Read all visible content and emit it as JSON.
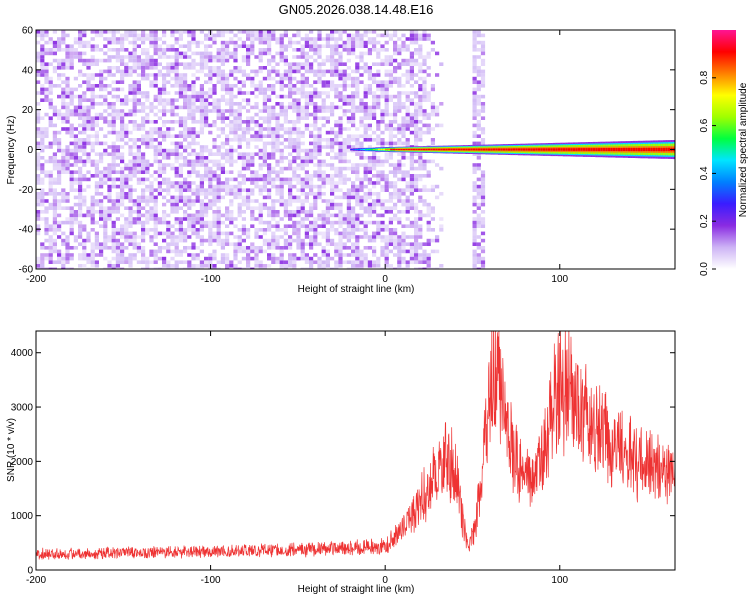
{
  "title": "GN05.2026.038.14.48.E16",
  "chart_data": [
    {
      "type": "heatmap",
      "xlabel": "Height of straight line (km)",
      "ylabel": "Frequency (Hz)",
      "xlim": [
        -200,
        166
      ],
      "ylim": [
        -60,
        60
      ],
      "xticks": [
        -200,
        -100,
        0,
        100
      ],
      "yticks": [
        -60,
        -40,
        -20,
        0,
        20,
        40,
        60
      ],
      "grid": false,
      "colorbar": {
        "label": "Normalized spectral amplitude",
        "range": [
          0,
          1
        ],
        "ticks": [
          0,
          0.2,
          0.4,
          0.6,
          0.8
        ],
        "colormap": [
          "#ffffff",
          "#cdb3f5",
          "#8a2be2",
          "#3a1cff",
          "#0080ff",
          "#00e5ff",
          "#00ff40",
          "#a0ff00",
          "#ffff00",
          "#ff8000",
          "#ff0000",
          "#ff1493"
        ]
      },
      "features": [
        {
          "kind": "noise",
          "x_range": [
            -200,
            20
          ],
          "y_range": [
            -60,
            60
          ],
          "level": 0.15
        },
        {
          "kind": "band",
          "x_range": [
            50,
            56
          ],
          "y_range": [
            -60,
            60
          ],
          "level": 0.12
        },
        {
          "kind": "carrier",
          "x_range": [
            -20,
            166
          ],
          "y_center": 0,
          "level": 0.9
        }
      ]
    },
    {
      "type": "line",
      "xlabel": "Height of straight line (km)",
      "ylabel": "SNR (10 * v/v)",
      "xlim": [
        -200,
        166
      ],
      "ylim": [
        0,
        4400
      ],
      "xticks": [
        -200,
        -100,
        0,
        100
      ],
      "yticks": [
        0,
        1000,
        2000,
        3000,
        4000
      ],
      "grid": false,
      "series_color": "#ee3333",
      "envelope": {
        "x": [
          -200,
          -150,
          -100,
          -50,
          0,
          10,
          20,
          30,
          35,
          40,
          45,
          48,
          52,
          58,
          62,
          66,
          70,
          75,
          80,
          85,
          90,
          95,
          100,
          105,
          110,
          120,
          130,
          140,
          150,
          166
        ],
        "y": [
          300,
          310,
          340,
          380,
          430,
          750,
          1250,
          1800,
          2050,
          1850,
          800,
          400,
          900,
          2500,
          3700,
          3600,
          2500,
          2000,
          1700,
          1600,
          2100,
          2900,
          3400,
          3300,
          3000,
          2600,
          2300,
          2100,
          1900,
          1700
        ]
      },
      "noise_amplitude_frac": 0.25
    }
  ]
}
